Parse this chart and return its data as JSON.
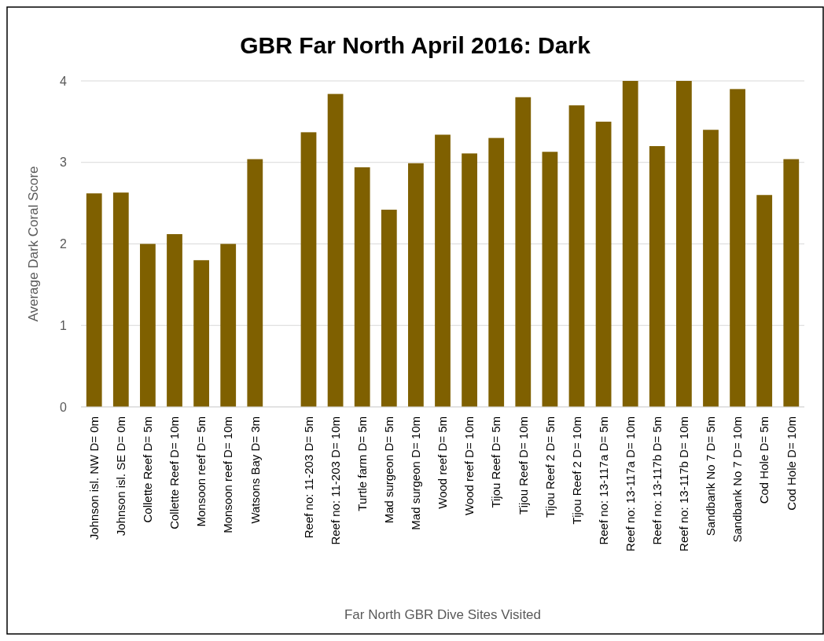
{
  "chart_data": {
    "type": "bar",
    "title": "GBR Far North April 2016: Dark",
    "xlabel": "Far North GBR Dive Sites Visited",
    "ylabel": "Average Dark Coral Score",
    "categories": [
      "Johnson isl. NW D= 0m",
      "Johnson isl. SE D= 0m",
      "Collette Reef D= 5m",
      "Collette Reef D= 10m",
      "Monsoon reef D= 5m",
      "Monsoon reef D= 10m",
      "Watsons Bay D= 3m",
      null,
      "Reef no: 11-203 D= 5m",
      "Reef no: 11-203 D= 10m",
      "Turtle farm D= 5m",
      "Mad surgeon D= 5m",
      "Mad surgeon D= 10m",
      "Wood reef D= 5m",
      "Wood reef D= 10m",
      "Tijou Reef D= 5m",
      "Tijou Reef D= 10m",
      "Tijou Reef 2 D= 5m",
      "Tijou Reef 2 D= 10m",
      "Reef no: 13-117a D= 5m",
      "Reef no: 13-117a D= 10m",
      "Reef no: 13-117b D= 5m",
      "Reef no: 13-117b D= 10m",
      "Sandbank No 7 D= 5m",
      "Sandbank No 7 D= 10m",
      "Cod Hole D= 5m",
      "Cod Hole D= 10m"
    ],
    "values": [
      2.62,
      2.63,
      2.0,
      2.12,
      1.8,
      2.0,
      3.04,
      null,
      3.37,
      3.84,
      2.94,
      2.42,
      2.99,
      3.34,
      3.11,
      3.3,
      3.8,
      3.13,
      3.7,
      3.5,
      4.0,
      3.2,
      4.0,
      3.4,
      3.9,
      2.6,
      3.04
    ],
    "color": "#7f6000",
    "ylim": [
      0,
      4
    ],
    "yticks": [
      0,
      1,
      2,
      3,
      4
    ],
    "grid": "y"
  }
}
